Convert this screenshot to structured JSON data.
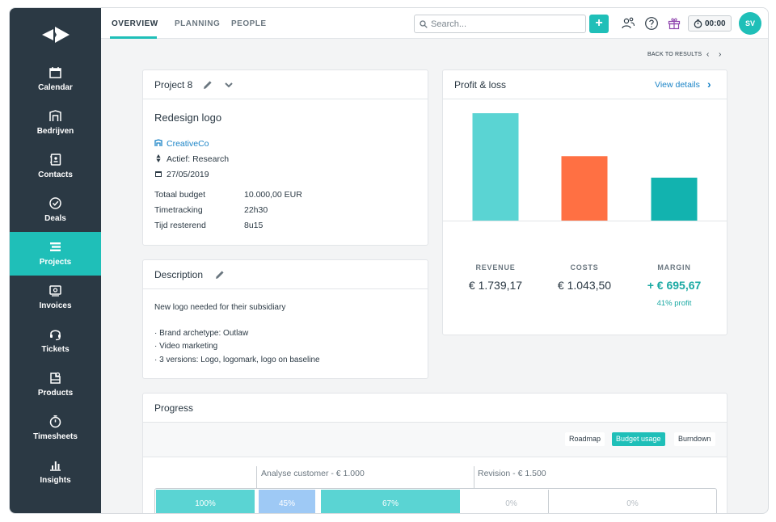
{
  "sidebar": {
    "items": [
      {
        "label": "Calendar",
        "icon": "calendar-icon"
      },
      {
        "label": "Bedrijven",
        "icon": "building-icon"
      },
      {
        "label": "Contacts",
        "icon": "contact-book-icon"
      },
      {
        "label": "Deals",
        "icon": "check-circle-icon"
      },
      {
        "label": "Projects",
        "icon": "projects-icon",
        "active": true
      },
      {
        "label": "Invoices",
        "icon": "invoice-icon"
      },
      {
        "label": "Tickets",
        "icon": "headset-icon"
      },
      {
        "label": "Products",
        "icon": "products-icon"
      },
      {
        "label": "Timesheets",
        "icon": "stopwatch-icon"
      },
      {
        "label": "Insights",
        "icon": "insights-chart-icon"
      }
    ]
  },
  "topbar": {
    "tabs": [
      "OVERVIEW",
      "PLANNING",
      "PEOPLE"
    ],
    "active_tab": "OVERVIEW",
    "search_placeholder": "Search...",
    "add_label": "+",
    "timer": "00:00",
    "avatar_initials": "SV"
  },
  "nav": {
    "back_label": "BACK TO RESULTS",
    "prev": "‹",
    "next": "›"
  },
  "project_card": {
    "title": "Project 8",
    "name": "Redesign logo",
    "company": "CreativeCo",
    "status": "Actief: Research",
    "date": "27/05/2019",
    "details": [
      {
        "key": "Totaal budget",
        "value": "10.000,00 EUR",
        "link": false
      },
      {
        "key": "Timetracking",
        "value": "22h30",
        "link": true
      },
      {
        "key": "Tijd resterend",
        "value": "8u15",
        "link": false
      }
    ]
  },
  "description_card": {
    "title": "Description",
    "intro": "New logo needed for their subsidiary",
    "bullets": [
      "·  Brand archetype: Outlaw",
      "·  Video marketing",
      "·  3 versions: Logo, logomark, logo on baseline"
    ]
  },
  "pl_card": {
    "title": "Profit & loss",
    "view_details": "View details",
    "chevron": "›",
    "revenue_label": "REVENUE",
    "revenue_value": "€ 1.739,17",
    "costs_label": "COSTS",
    "costs_value": "€ 1.043,50",
    "margin_label": "MARGIN",
    "margin_value": "+ € 695,67",
    "profit_note": "41% profit",
    "colors": {
      "revenue": "#5ad4d3",
      "costs": "#ff7043",
      "margin": "#12b3af"
    }
  },
  "chart_data": {
    "type": "bar",
    "categories": [
      "REVENUE",
      "COSTS",
      "MARGIN"
    ],
    "values": [
      1739.17,
      1043.5,
      695.67
    ],
    "title": "",
    "xlabel": "",
    "ylabel": "",
    "ylim": [
      0,
      1950
    ],
    "grid": false,
    "legend": "none"
  },
  "progress_card": {
    "title": "Progress",
    "views": [
      {
        "label": "Roadmap",
        "active": false
      },
      {
        "label": "Budget usage",
        "active": true
      },
      {
        "label": "Burndown",
        "active": false
      }
    ],
    "phases": [
      {
        "label": "Analyse customer - € 1.000"
      },
      {
        "label": "Revision - € 1.500"
      }
    ],
    "segments": [
      {
        "label": "100%",
        "value": 1.0,
        "color": "#5ad4d3"
      },
      {
        "label": "45%",
        "value": 0.45,
        "color": "#9ec9f5"
      },
      {
        "label": "67%",
        "value": 0.67,
        "color": "#5ad4d3"
      },
      {
        "label": "0%",
        "value": 0,
        "color": "#ffffff"
      },
      {
        "label": "0%",
        "value": 0,
        "color": "#ffffff"
      }
    ]
  }
}
